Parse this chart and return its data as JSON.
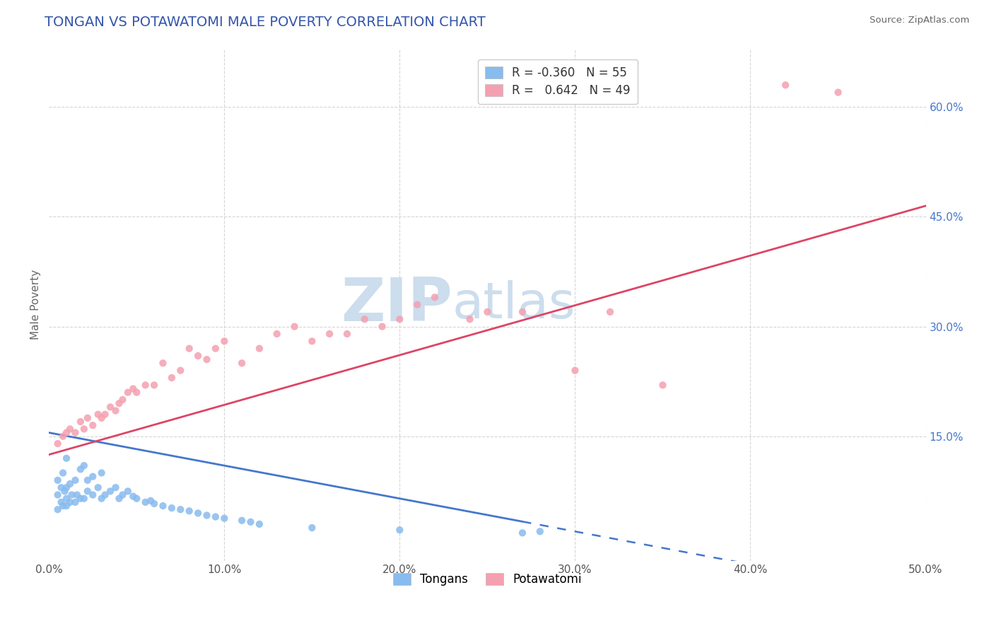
{
  "title": "TONGAN VS POTAWATOMI MALE POVERTY CORRELATION CHART",
  "source_text": "Source: ZipAtlas.com",
  "ylabel": "Male Poverty",
  "xlim": [
    0.0,
    0.5
  ],
  "ylim": [
    -0.02,
    0.68
  ],
  "xtick_labels": [
    "0.0%",
    "10.0%",
    "20.0%",
    "30.0%",
    "40.0%",
    "50.0%"
  ],
  "xtick_values": [
    0.0,
    0.1,
    0.2,
    0.3,
    0.4,
    0.5
  ],
  "ytick_labels": [
    "15.0%",
    "30.0%",
    "45.0%",
    "60.0%"
  ],
  "ytick_values": [
    0.15,
    0.3,
    0.45,
    0.6
  ],
  "grid_color": "#cccccc",
  "background_color": "#ffffff",
  "title_color": "#3355aa",
  "title_fontsize": 14,
  "legend_R1": "-0.360",
  "legend_N1": "55",
  "legend_R2": "0.642",
  "legend_N2": "49",
  "color_tongans": "#88bbee",
  "color_potawatomi": "#f4a0b0",
  "line_color_tongans": "#4477cc",
  "line_color_potawatomi": "#dd4466",
  "watermark_zip": "ZIP",
  "watermark_atlas": "atlas",
  "watermark_color": "#ccdded",
  "legend_label1": "Tongans",
  "legend_label2": "Potawatomi",
  "tongans_x": [
    0.005,
    0.005,
    0.005,
    0.007,
    0.007,
    0.008,
    0.008,
    0.009,
    0.01,
    0.01,
    0.01,
    0.01,
    0.012,
    0.012,
    0.013,
    0.015,
    0.015,
    0.016,
    0.018,
    0.018,
    0.02,
    0.02,
    0.022,
    0.022,
    0.025,
    0.025,
    0.028,
    0.03,
    0.03,
    0.032,
    0.035,
    0.038,
    0.04,
    0.042,
    0.045,
    0.048,
    0.05,
    0.055,
    0.058,
    0.06,
    0.065,
    0.07,
    0.075,
    0.08,
    0.085,
    0.09,
    0.095,
    0.1,
    0.11,
    0.115,
    0.12,
    0.15,
    0.2,
    0.27,
    0.28
  ],
  "tongans_y": [
    0.05,
    0.07,
    0.09,
    0.06,
    0.08,
    0.055,
    0.1,
    0.075,
    0.055,
    0.065,
    0.08,
    0.12,
    0.06,
    0.085,
    0.07,
    0.06,
    0.09,
    0.07,
    0.065,
    0.105,
    0.065,
    0.11,
    0.075,
    0.09,
    0.07,
    0.095,
    0.08,
    0.065,
    0.1,
    0.07,
    0.075,
    0.08,
    0.065,
    0.07,
    0.075,
    0.068,
    0.065,
    0.06,
    0.062,
    0.058,
    0.055,
    0.052,
    0.05,
    0.048,
    0.045,
    0.042,
    0.04,
    0.038,
    0.035,
    0.033,
    0.03,
    0.025,
    0.022,
    0.018,
    0.02
  ],
  "potawatomi_x": [
    0.005,
    0.008,
    0.01,
    0.012,
    0.015,
    0.018,
    0.02,
    0.022,
    0.025,
    0.028,
    0.03,
    0.032,
    0.035,
    0.038,
    0.04,
    0.042,
    0.045,
    0.048,
    0.05,
    0.055,
    0.06,
    0.065,
    0.07,
    0.075,
    0.08,
    0.085,
    0.09,
    0.095,
    0.1,
    0.11,
    0.12,
    0.13,
    0.14,
    0.15,
    0.16,
    0.17,
    0.18,
    0.19,
    0.2,
    0.21,
    0.22,
    0.24,
    0.25,
    0.27,
    0.3,
    0.32,
    0.35,
    0.42,
    0.45
  ],
  "potawatomi_y": [
    0.14,
    0.15,
    0.155,
    0.16,
    0.155,
    0.17,
    0.16,
    0.175,
    0.165,
    0.18,
    0.175,
    0.18,
    0.19,
    0.185,
    0.195,
    0.2,
    0.21,
    0.215,
    0.21,
    0.22,
    0.22,
    0.25,
    0.23,
    0.24,
    0.27,
    0.26,
    0.255,
    0.27,
    0.28,
    0.25,
    0.27,
    0.29,
    0.3,
    0.28,
    0.29,
    0.29,
    0.31,
    0.3,
    0.31,
    0.33,
    0.34,
    0.31,
    0.32,
    0.32,
    0.24,
    0.32,
    0.22,
    0.63,
    0.62
  ],
  "tonga_line_x0": 0.0,
  "tonga_line_x_solid_end": 0.27,
  "tonga_line_x_dash_end": 0.5,
  "tonga_line_y0": 0.155,
  "tonga_line_slope": -0.45,
  "potawatomi_line_x0": 0.0,
  "potawatomi_line_x1": 0.5,
  "potawatomi_line_y0": 0.125,
  "potawatomi_line_slope": 0.68
}
